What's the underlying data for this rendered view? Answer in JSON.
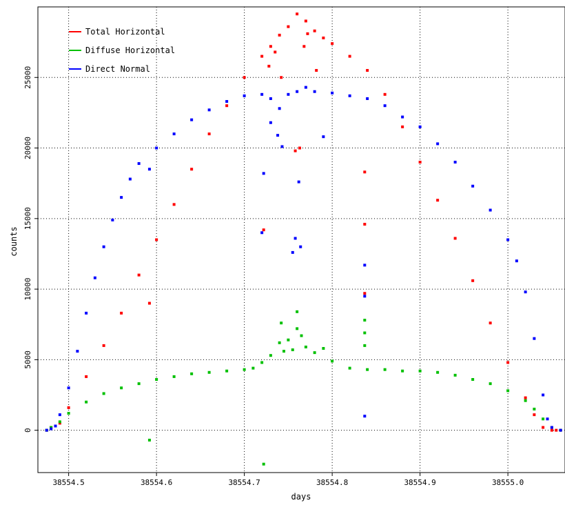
{
  "chart_data": {
    "type": "scatter",
    "title": "",
    "xlabel": "days",
    "ylabel": "counts",
    "xlim": [
      38554.465,
      38555.065
    ],
    "ylim": [
      -3000,
      30000
    ],
    "xticks": [
      38554.5,
      38554.6,
      38554.7,
      38554.8,
      38554.9,
      38555.0
    ],
    "xtick_labels": [
      "38554.5",
      "38554.6",
      "38554.7",
      "38554.8",
      "38554.9",
      "38555.0"
    ],
    "yticks": [
      0,
      5000,
      10000,
      15000,
      20000,
      25000
    ],
    "ytick_labels": [
      "0",
      "5000",
      "10000",
      "15000",
      "20000",
      "25000"
    ],
    "grid": true,
    "legend_position": "top-left",
    "series": [
      {
        "name": "Total Horizontal",
        "color": "#ff0000",
        "points": [
          [
            38554.475,
            0
          ],
          [
            38554.48,
            200
          ],
          [
            38554.485,
            300
          ],
          [
            38554.49,
            500
          ],
          [
            38554.5,
            1600
          ],
          [
            38554.52,
            3800
          ],
          [
            38554.54,
            6000
          ],
          [
            38554.56,
            8300
          ],
          [
            38554.58,
            11000
          ],
          [
            38554.6,
            13500
          ],
          [
            38554.62,
            16000
          ],
          [
            38554.64,
            18500
          ],
          [
            38554.66,
            21000
          ],
          [
            38554.68,
            23000
          ],
          [
            38554.7,
            25000
          ],
          [
            38554.72,
            26500
          ],
          [
            38554.73,
            27200
          ],
          [
            38554.74,
            28000
          ],
          [
            38554.75,
            28600
          ],
          [
            38554.76,
            29500
          ],
          [
            38554.77,
            29000
          ],
          [
            38554.78,
            28300
          ],
          [
            38554.79,
            27800
          ],
          [
            38554.8,
            27400
          ],
          [
            38554.82,
            26500
          ],
          [
            38554.84,
            25500
          ],
          [
            38554.86,
            23800
          ],
          [
            38554.88,
            21500
          ],
          [
            38554.9,
            19000
          ],
          [
            38554.92,
            16300
          ],
          [
            38554.94,
            13600
          ],
          [
            38554.96,
            10600
          ],
          [
            38554.98,
            7600
          ],
          [
            38555.0,
            4800
          ],
          [
            38555.02,
            2300
          ],
          [
            38555.03,
            1100
          ],
          [
            38555.04,
            200
          ],
          [
            38555.05,
            0
          ],
          [
            38555.055,
            0
          ],
          [
            38555.06,
            0
          ],
          [
            38554.592,
            9000
          ],
          [
            38554.722,
            14200
          ],
          [
            38554.728,
            25800
          ],
          [
            38554.735,
            26800
          ],
          [
            38554.742,
            25000
          ],
          [
            38554.758,
            19800
          ],
          [
            38554.763,
            20000
          ],
          [
            38554.768,
            27200
          ],
          [
            38554.772,
            28100
          ],
          [
            38554.782,
            25500
          ],
          [
            38554.837,
            18300
          ],
          [
            38554.837,
            14600
          ],
          [
            38554.837,
            9700
          ]
        ]
      },
      {
        "name": "Diffuse Horizontal",
        "color": "#00c000",
        "points": [
          [
            38554.475,
            0
          ],
          [
            38554.48,
            200
          ],
          [
            38554.49,
            600
          ],
          [
            38554.5,
            1200
          ],
          [
            38554.52,
            2000
          ],
          [
            38554.54,
            2600
          ],
          [
            38554.56,
            3000
          ],
          [
            38554.58,
            3300
          ],
          [
            38554.6,
            3600
          ],
          [
            38554.62,
            3800
          ],
          [
            38554.64,
            4000
          ],
          [
            38554.66,
            4100
          ],
          [
            38554.68,
            4200
          ],
          [
            38554.7,
            4300
          ],
          [
            38554.71,
            4400
          ],
          [
            38554.72,
            4800
          ],
          [
            38554.73,
            5300
          ],
          [
            38554.74,
            6200
          ],
          [
            38554.745,
            5600
          ],
          [
            38554.75,
            6400
          ],
          [
            38554.755,
            5700
          ],
          [
            38554.76,
            7200
          ],
          [
            38554.765,
            6700
          ],
          [
            38554.77,
            5900
          ],
          [
            38554.78,
            5500
          ],
          [
            38554.79,
            5800
          ],
          [
            38554.8,
            4900
          ],
          [
            38554.82,
            4400
          ],
          [
            38554.84,
            4300
          ],
          [
            38554.86,
            4300
          ],
          [
            38554.88,
            4200
          ],
          [
            38554.9,
            4200
          ],
          [
            38554.92,
            4100
          ],
          [
            38554.94,
            3900
          ],
          [
            38554.96,
            3600
          ],
          [
            38554.98,
            3300
          ],
          [
            38555.0,
            2800
          ],
          [
            38555.02,
            2100
          ],
          [
            38555.03,
            1500
          ],
          [
            38555.04,
            800
          ],
          [
            38555.05,
            200
          ],
          [
            38555.06,
            0
          ],
          [
            38554.592,
            -700
          ],
          [
            38554.722,
            -2400
          ],
          [
            38554.76,
            8400
          ],
          [
            38554.742,
            7600
          ],
          [
            38554.837,
            7800
          ],
          [
            38554.837,
            6900
          ],
          [
            38554.837,
            6000
          ]
        ]
      },
      {
        "name": "Direct Normal",
        "color": "#0000ff",
        "points": [
          [
            38554.475,
            0
          ],
          [
            38554.48,
            100
          ],
          [
            38554.485,
            300
          ],
          [
            38554.49,
            1100
          ],
          [
            38554.5,
            3000
          ],
          [
            38554.51,
            5600
          ],
          [
            38554.52,
            8300
          ],
          [
            38554.53,
            10800
          ],
          [
            38554.54,
            13000
          ],
          [
            38554.55,
            14900
          ],
          [
            38554.56,
            16500
          ],
          [
            38554.57,
            17800
          ],
          [
            38554.58,
            18900
          ],
          [
            38554.6,
            20000
          ],
          [
            38554.62,
            21000
          ],
          [
            38554.64,
            22000
          ],
          [
            38554.66,
            22700
          ],
          [
            38554.68,
            23300
          ],
          [
            38554.7,
            23700
          ],
          [
            38554.72,
            23800
          ],
          [
            38554.73,
            23500
          ],
          [
            38554.74,
            22800
          ],
          [
            38554.75,
            23800
          ],
          [
            38554.76,
            24000
          ],
          [
            38554.77,
            24300
          ],
          [
            38554.78,
            24000
          ],
          [
            38554.8,
            23900
          ],
          [
            38554.82,
            23700
          ],
          [
            38554.84,
            23500
          ],
          [
            38554.86,
            23000
          ],
          [
            38554.88,
            22200
          ],
          [
            38554.9,
            21500
          ],
          [
            38554.92,
            20300
          ],
          [
            38554.94,
            19000
          ],
          [
            38554.96,
            17300
          ],
          [
            38554.98,
            15600
          ],
          [
            38555.0,
            13500
          ],
          [
            38555.01,
            12000
          ],
          [
            38555.02,
            9800
          ],
          [
            38555.03,
            6500
          ],
          [
            38555.04,
            2500
          ],
          [
            38555.045,
            800
          ],
          [
            38555.05,
            200
          ],
          [
            38555.06,
            0
          ],
          [
            38554.592,
            18500
          ],
          [
            38554.722,
            18200
          ],
          [
            38554.72,
            14000
          ],
          [
            38554.73,
            21800
          ],
          [
            38554.738,
            20900
          ],
          [
            38554.743,
            20100
          ],
          [
            38554.755,
            12600
          ],
          [
            38554.758,
            13600
          ],
          [
            38554.762,
            17600
          ],
          [
            38554.764,
            13000
          ],
          [
            38554.79,
            20800
          ],
          [
            38554.837,
            11700
          ],
          [
            38554.837,
            9500
          ],
          [
            38554.837,
            1000
          ]
        ]
      }
    ]
  }
}
